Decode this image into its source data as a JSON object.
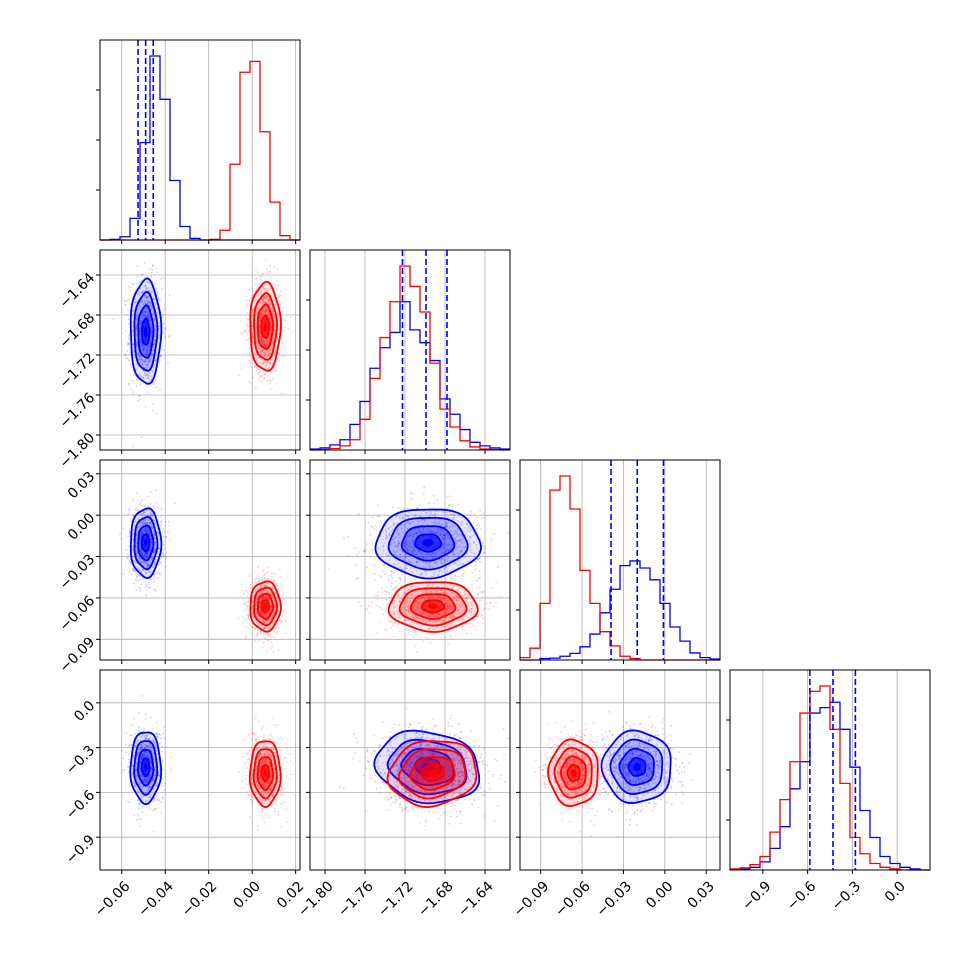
{
  "chart_data": {
    "type": "corner",
    "colors": {
      "series_a": "#0000ff",
      "series_b": "#ff0000",
      "grid": "#b0b0b0"
    },
    "grid": true,
    "series": [
      {
        "color": "#0000ff"
      },
      {
        "color": "#ff0000"
      }
    ],
    "parameters": [
      {
        "range": [
          -0.07,
          0.022
        ],
        "ticks": [
          -0.06,
          -0.04,
          -0.02,
          0.0,
          0.02
        ],
        "tick_labels": [
          "−0.06",
          "−0.04",
          "−0.02",
          "0.00",
          "0.02"
        ],
        "quantiles_series_a": [
          -0.0525,
          -0.049,
          -0.0455
        ],
        "histogram": {
          "bins": 20,
          "series_a": [
            0,
            1,
            6,
            40,
            180,
            340,
            260,
            110,
            25,
            3,
            0,
            0,
            0,
            0,
            0,
            0,
            0,
            0,
            0,
            0
          ],
          "series_b": [
            0,
            0,
            0,
            0,
            0,
            0,
            0,
            0,
            0,
            0,
            0,
            1,
            18,
            140,
            310,
            330,
            200,
            70,
            8,
            0
          ]
        }
      },
      {
        "range": [
          -1.815,
          -1.615
        ],
        "ticks": [
          -1.8,
          -1.76,
          -1.72,
          -1.68,
          -1.64
        ],
        "tick_labels": [
          "−1.80",
          "−1.76",
          "−1.72",
          "−1.68",
          "−1.64"
        ],
        "quantiles_series_a": [
          -1.7225,
          -1.699,
          -1.678
        ],
        "histogram": {
          "bins": 20,
          "series_a": [
            2,
            4,
            10,
            20,
            50,
            95,
            160,
            200,
            230,
            290,
            235,
            210,
            175,
            100,
            70,
            40,
            15,
            8,
            4,
            2
          ],
          "series_b": [
            0,
            1,
            3,
            8,
            20,
            60,
            140,
            220,
            290,
            360,
            320,
            270,
            170,
            80,
            45,
            18,
            6,
            2,
            1,
            0
          ]
        }
      },
      {
        "range": [
          -0.105,
          0.04
        ],
        "ticks": [
          -0.09,
          -0.06,
          -0.03,
          0.0,
          0.03
        ],
        "tick_labels": [
          "−0.09",
          "−0.06",
          "−0.03",
          "0.00",
          "0.03"
        ],
        "quantiles_series_a": [
          -0.039,
          -0.02,
          -0.001
        ],
        "histogram": {
          "bins": 20,
          "series_a": [
            0,
            0,
            3,
            4,
            8,
            14,
            28,
            55,
            100,
            150,
            200,
            210,
            195,
            170,
            120,
            70,
            40,
            15,
            5,
            2
          ],
          "series_b": [
            5,
            25,
            120,
            360,
            390,
            320,
            190,
            120,
            60,
            30,
            8,
            3,
            0,
            0,
            0,
            0,
            0,
            0,
            0,
            0
          ]
        }
      },
      {
        "range": [
          -1.12,
          0.22
        ],
        "ticks": [
          -0.9,
          -0.6,
          -0.3,
          0.0
        ],
        "tick_labels": [
          "−0.9",
          "−0.6",
          "−0.3",
          "0.0"
        ],
        "quantiles_series_a": [
          -0.585,
          -0.43,
          -0.28
        ],
        "histogram": {
          "bins": 20,
          "series_a": [
            1,
            2,
            5,
            15,
            40,
            80,
            150,
            200,
            290,
            300,
            310,
            260,
            190,
            110,
            60,
            25,
            12,
            5,
            2,
            0
          ],
          "series_b": [
            2,
            4,
            10,
            25,
            70,
            130,
            200,
            290,
            330,
            340,
            260,
            160,
            60,
            30,
            12,
            5,
            2,
            0,
            0,
            0
          ]
        }
      }
    ],
    "mean": {
      "series_a": [
        -0.049,
        -1.697,
        -0.02,
        -0.43
      ],
      "series_b": [
        0.006,
        -1.692,
        -0.066,
        -0.47
      ]
    },
    "std": {
      "series_a": [
        0.0035,
        0.026,
        0.0125,
        0.12
      ],
      "series_b": [
        0.0035,
        0.022,
        0.009,
        0.11
      ]
    },
    "correlation": {
      "series_a": {
        "1,0": 0.0,
        "2,0": 0.0,
        "2,1": 0.0,
        "3,0": 0.0,
        "3,1": -0.15,
        "3,2": 0.0
      },
      "series_b": {
        "1,0": 0.0,
        "2,0": 0.0,
        "2,1": 0.0,
        "3,0": 0.0,
        "3,1": 0.1,
        "3,2": 0.0
      }
    }
  }
}
